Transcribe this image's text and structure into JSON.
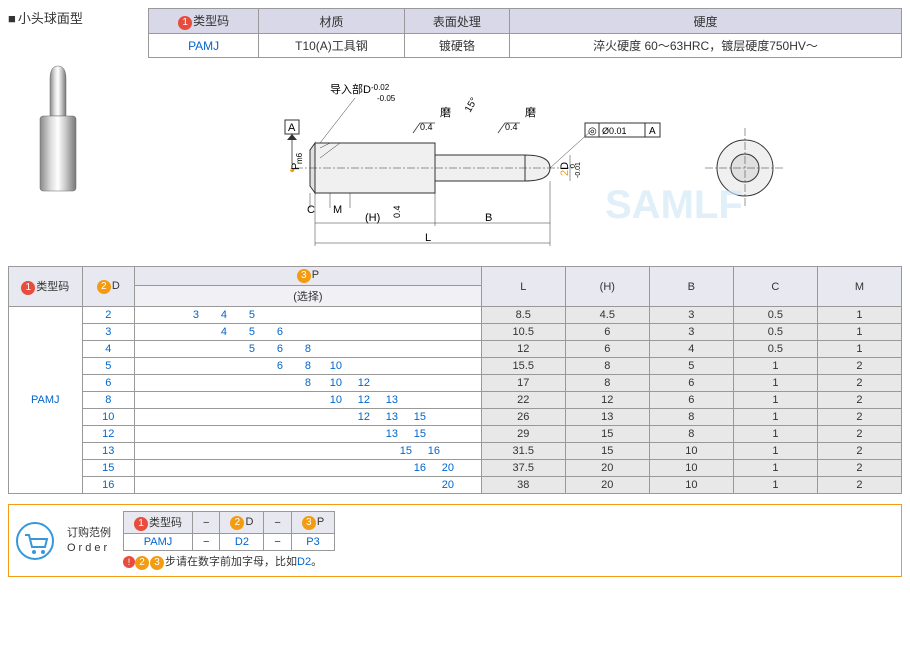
{
  "title": "小头球面型",
  "spec_table": {
    "headers": [
      "类型码",
      "材质",
      "表面处理",
      "硬度"
    ],
    "header_num": "1",
    "row": {
      "type_code": "PAMJ",
      "material": "T10(A)工具钢",
      "surface": "镀硬铬",
      "hardness": "淬火硬度 60～63HRC，镀层硬度750HV～"
    }
  },
  "diagram": {
    "lead_label": "导入部D",
    "lead_tol_upper": "-0.02",
    "lead_tol_lower": "-0.05",
    "grind1": "磨",
    "grind2": "磨",
    "angle": "15°",
    "ra1": "0.4",
    "ra2": "0.4",
    "ra3": "0.4",
    "datum": "A",
    "gd_t": "◎ Ø0.01 A",
    "dim_P": "P",
    "dim_P_tol": "m6",
    "dim_P_num": "3",
    "dim_D": "D",
    "dim_D_num": "2",
    "dim_D_tol_upper": "0",
    "dim_D_tol_lower": "-0.01",
    "dim_C": "C",
    "dim_M": "M",
    "dim_H": "(H)",
    "dim_B": "B",
    "dim_L": "L"
  },
  "main_table": {
    "headers": {
      "type_code": "类型码",
      "type_num": "1",
      "D": "D",
      "D_num": "2",
      "P": "P",
      "P_num": "3",
      "P_sub": "(选择)",
      "L": "L",
      "H": "(H)",
      "B": "B",
      "C": "C",
      "M": "M"
    },
    "type_code": "PAMJ",
    "rows": [
      {
        "D": "2",
        "P": [
          "3",
          "4",
          "5",
          "",
          "",
          "",
          "",
          "",
          ""
        ],
        "L": "8.5",
        "H": "4.5",
        "B": "3",
        "C": "0.5",
        "M": "1"
      },
      {
        "D": "3",
        "P": [
          "",
          "4",
          "5",
          "6",
          "",
          "",
          "",
          "",
          ""
        ],
        "L": "10.5",
        "H": "6",
        "B": "3",
        "C": "0.5",
        "M": "1"
      },
      {
        "D": "4",
        "P": [
          "",
          "",
          "5",
          "6",
          "8",
          "",
          "",
          "",
          ""
        ],
        "L": "12",
        "H": "6",
        "B": "4",
        "C": "0.5",
        "M": "1"
      },
      {
        "D": "5",
        "P": [
          "",
          "",
          "",
          "6",
          "8",
          "10",
          "",
          "",
          ""
        ],
        "L": "15.5",
        "H": "8",
        "B": "5",
        "C": "1",
        "M": "2"
      },
      {
        "D": "6",
        "P": [
          "",
          "",
          "",
          "",
          "8",
          "10",
          "12",
          "",
          ""
        ],
        "L": "17",
        "H": "8",
        "B": "6",
        "C": "1",
        "M": "2"
      },
      {
        "D": "8",
        "P": [
          "",
          "",
          "",
          "",
          "",
          "10",
          "12",
          "13",
          ""
        ],
        "L": "22",
        "H": "12",
        "B": "6",
        "C": "1",
        "M": "2"
      },
      {
        "D": "10",
        "P": [
          "",
          "",
          "",
          "",
          "",
          "",
          "12",
          "13",
          "15"
        ],
        "L": "26",
        "H": "13",
        "B": "8",
        "C": "1",
        "M": "2"
      },
      {
        "D": "12",
        "P": [
          "",
          "",
          "",
          "",
          "",
          "",
          "",
          "13",
          "15"
        ],
        "L": "29",
        "H": "15",
        "B": "8",
        "C": "1",
        "M": "2"
      },
      {
        "D": "13",
        "P": [
          "",
          "",
          "",
          "",
          "",
          "",
          "",
          "",
          "15",
          "16"
        ],
        "L": "31.5",
        "H": "15",
        "B": "10",
        "C": "1",
        "M": "2"
      },
      {
        "D": "15",
        "P": [
          "",
          "",
          "",
          "",
          "",
          "",
          "",
          "",
          "",
          "16",
          "20"
        ],
        "L": "37.5",
        "H": "20",
        "B": "10",
        "C": "1",
        "M": "2"
      },
      {
        "D": "16",
        "P": [
          "",
          "",
          "",
          "",
          "",
          "",
          "",
          "",
          "",
          "",
          "20"
        ],
        "L": "38",
        "H": "20",
        "B": "10",
        "C": "1",
        "M": "2"
      }
    ]
  },
  "order": {
    "label_cn": "订购范例",
    "label_en": "Order",
    "headers": [
      "类型码",
      "D",
      "P"
    ],
    "header_nums": [
      "1",
      "2",
      "3"
    ],
    "values": [
      "PAMJ",
      "D2",
      "P3"
    ],
    "note_prefix": "!",
    "note_nums": "23",
    "note_text": "步请在数字前加字母，比如",
    "note_example": "D2",
    "note_suffix": "。"
  }
}
